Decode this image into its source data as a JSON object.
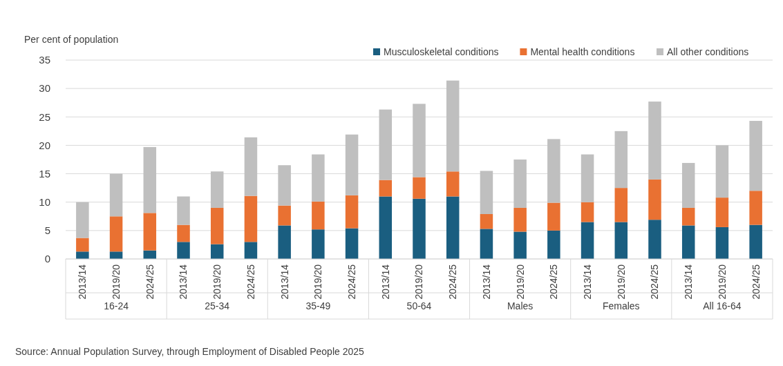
{
  "chart_data": {
    "type": "bar",
    "stacked": true,
    "ylabel": "Per cent of population",
    "categories": [
      "2013/14",
      "2019/20",
      "2024/25",
      "2013/14",
      "2019/20",
      "2024/25",
      "2013/14",
      "2019/20",
      "2024/25",
      "2013/14",
      "2019/20",
      "2024/25",
      "2013/14",
      "2019/20",
      "2024/25",
      "2013/14",
      "2019/20",
      "2024/25",
      "2013/14",
      "2019/20",
      "2024/25"
    ],
    "series": [
      {
        "name": "Musculoskeletal conditions",
        "color": "#1a5e80",
        "values": [
          1.3,
          1.3,
          1.5,
          3.0,
          2.6,
          3.0,
          5.9,
          5.2,
          5.4,
          11.0,
          10.6,
          11.0,
          5.3,
          4.8,
          5.0,
          6.5,
          6.5,
          6.9,
          5.9,
          5.6,
          6.0
        ]
      },
      {
        "name": "Mental health conditions",
        "color": "#e97132",
        "values": [
          2.4,
          6.2,
          6.6,
          3.0,
          6.4,
          8.1,
          3.5,
          4.9,
          5.8,
          2.9,
          3.8,
          4.4,
          2.6,
          4.2,
          4.9,
          3.5,
          6.0,
          7.1,
          3.1,
          5.2,
          6.0
        ]
      },
      {
        "name": "All other conditions",
        "color": "#bfbfbf",
        "values": [
          6.3,
          7.5,
          11.6,
          5.0,
          6.4,
          10.3,
          7.1,
          8.3,
          10.7,
          12.4,
          12.9,
          16.0,
          7.6,
          8.5,
          11.2,
          8.4,
          10.0,
          13.7,
          7.9,
          9.2,
          12.3
        ]
      }
    ],
    "ylim": [
      0,
      35
    ],
    "yticks": [
      0,
      5,
      10,
      15,
      20,
      25,
      30,
      35
    ],
    "grid": "y",
    "legend": "top right",
    "annotations": [
      "16-24",
      "25-34",
      "35-49",
      "50-64",
      "Males",
      "Females",
      "All 16-64",
      "Source: Annual Population Survey, through Employment of Disabled People 2025"
    ]
  }
}
